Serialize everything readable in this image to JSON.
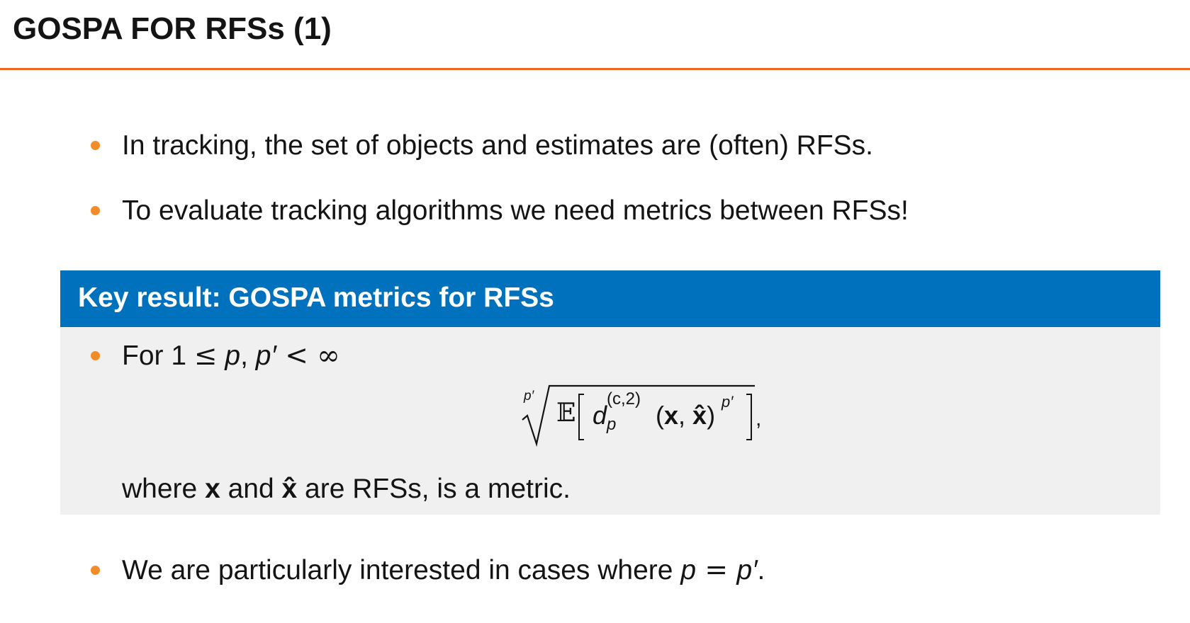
{
  "slide": {
    "title": "GOSPA FOR RFSs (1)"
  },
  "bullets": [
    {
      "text": "In tracking, the set of objects and estimates are (often) RFSs."
    },
    {
      "text": "To evaluate tracking algorithms we need metrics between RFSs!"
    }
  ],
  "key_result": {
    "title": "Key result: GOSPA metrics for RFSs",
    "condition": {
      "lead": "For 1 ",
      "leq": "≤",
      "p": "p",
      "comma": ", ",
      "p_prime": "p′",
      "lt": " < ",
      "infinity": "∞"
    },
    "formula": {
      "root_index": "p′",
      "expectation": "𝔼",
      "d": "d",
      "sub": "p",
      "sup": "(c,2)",
      "args_open": "(",
      "x": "x",
      "sep": ", ",
      "x_hat": "x̂",
      "args_close": ")",
      "power": "p′",
      "trailing": ","
    },
    "where": {
      "w1": "where ",
      "x": "x",
      "w2": " and ",
      "x_hat": "x̂",
      "w3": " are RFSs, is a metric."
    }
  },
  "final_bullet": {
    "lead": "We are particularly interested in cases where ",
    "p": "p",
    "eq": " = ",
    "p_prime": "p′",
    "period": "."
  },
  "colors": {
    "accent_rule": "#f26522",
    "bullet": "#f28c28",
    "block_header": "#0071bc",
    "block_body": "#f0f0f0"
  }
}
